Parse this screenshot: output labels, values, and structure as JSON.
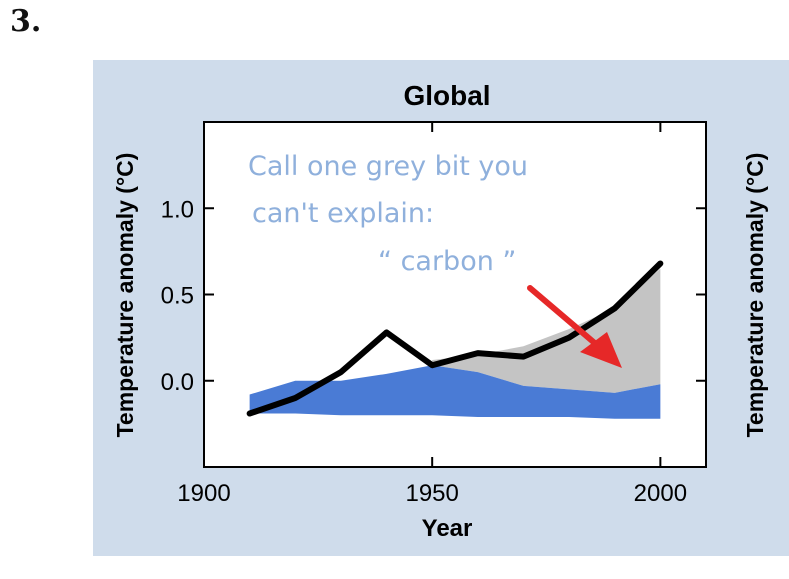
{
  "page": {
    "number_label": "3."
  },
  "colors": {
    "panel_bg": "#cfdceb",
    "plot_bg": "#ffffff",
    "natural_fill": "#4a7bd5",
    "model_fill": "#c4c4c4",
    "observed_line": "#000000",
    "annotation_text": "#8fb0dc",
    "arrow": "#e62828"
  },
  "chart_data": {
    "type": "area",
    "title": "Global",
    "xlabel": "Year",
    "ylabel": "Temperature anomaly (°C)",
    "right_ylabel": "Temperature anomaly (°C)",
    "xlim": [
      1900,
      2010
    ],
    "ylim": [
      -0.5,
      1.5
    ],
    "x_ticks": [
      1900,
      1950,
      2000
    ],
    "y_ticks": [
      0.0,
      0.5,
      1.0
    ],
    "y_tick_labels": [
      "0.0",
      "0.5",
      "1.0"
    ],
    "grid": false,
    "natural_band": {
      "x": [
        1910,
        1920,
        1930,
        1940,
        1950,
        1960,
        1970,
        1980,
        1990,
        2000
      ],
      "upper": [
        -0.08,
        0.0,
        0.0,
        0.04,
        0.09,
        0.05,
        -0.03,
        -0.05,
        -0.07,
        -0.02
      ],
      "lower": [
        -0.19,
        -0.19,
        -0.2,
        -0.2,
        -0.2,
        -0.21,
        -0.21,
        -0.21,
        -0.22,
        -0.22
      ]
    },
    "model_band": {
      "x": [
        1950,
        1960,
        1970,
        1980,
        1990,
        2000
      ],
      "upper": [
        0.12,
        0.15,
        0.2,
        0.3,
        0.42,
        0.65
      ]
    },
    "observed": {
      "x": [
        1910,
        1920,
        1930,
        1940,
        1950,
        1960,
        1970,
        1980,
        1990,
        2000
      ],
      "y": [
        -0.19,
        -0.1,
        0.05,
        0.28,
        0.09,
        0.16,
        0.14,
        0.25,
        0.42,
        0.68
      ]
    },
    "annotation": {
      "lines": [
        "Call one grey bit you",
        "can't explain:",
        "“ carbon ”"
      ]
    }
  }
}
